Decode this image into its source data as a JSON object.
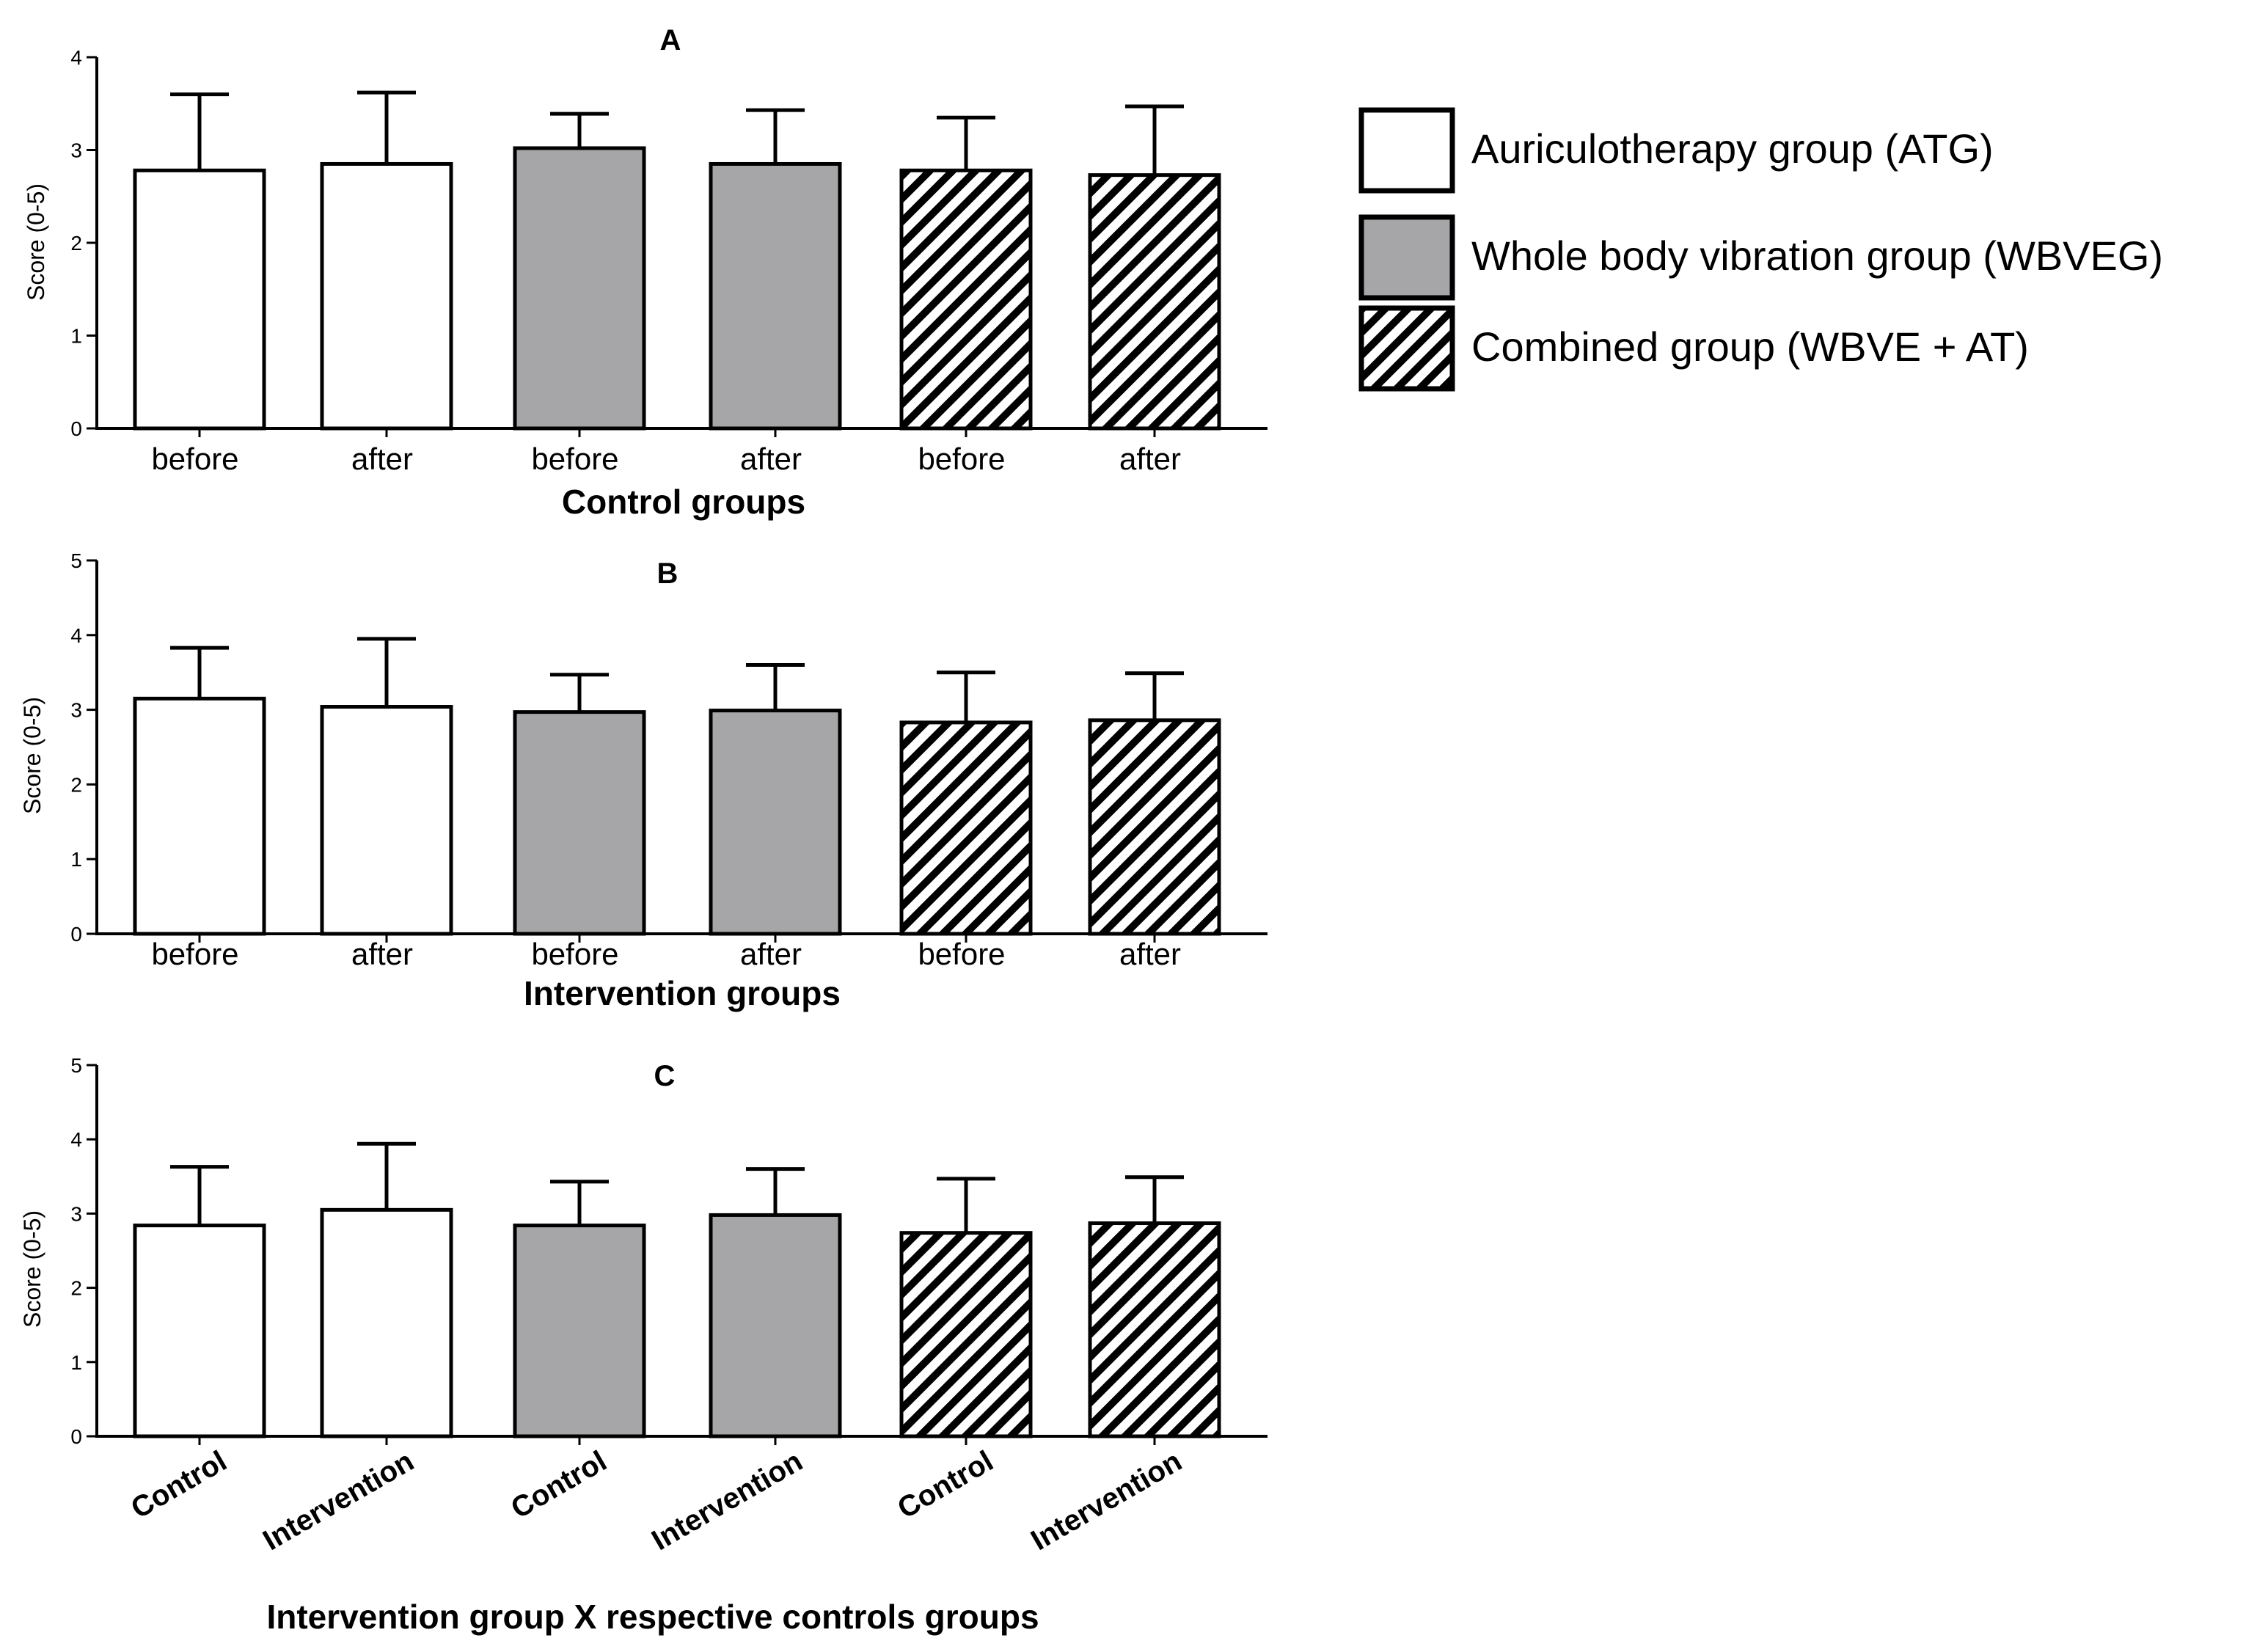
{
  "legend": {
    "items": [
      {
        "label": "Auriculotherapy group (ATG)",
        "fill": "white"
      },
      {
        "label": "Whole body vibration group (WBVEG)",
        "fill": "gray"
      },
      {
        "label": "Combined group (WBVE + AT)",
        "fill": "hatch"
      }
    ]
  },
  "colors": {
    "bar_gray": "#a6a6a8",
    "stroke": "#000000",
    "background": "#ffffff"
  },
  "chart_data": [
    {
      "type": "bar",
      "panel": "A",
      "title": "A",
      "xlabel": "Control groups",
      "ylabel": "Score (0-5)",
      "ylim": [
        0,
        4
      ],
      "yticks": [
        "0",
        "1",
        "2",
        "3",
        "4"
      ],
      "categories": [
        "before",
        "after",
        "before",
        "after",
        "before",
        "after"
      ],
      "category_groups": [
        "ATG",
        "ATG",
        "WBVEG",
        "WBVEG",
        "WBVE + AT",
        "WBVE + AT"
      ],
      "values": [
        2.78,
        2.85,
        3.02,
        2.85,
        2.78,
        2.73
      ],
      "error_upper": [
        3.6,
        3.62,
        3.39,
        3.43,
        3.35,
        3.47
      ],
      "rotated_labels": false
    },
    {
      "type": "bar",
      "panel": "B",
      "title": "B",
      "xlabel": "Intervention groups",
      "ylabel": "Score (0-5)",
      "ylim": [
        0,
        5
      ],
      "yticks": [
        "0",
        "1",
        "2",
        "3",
        "4",
        "5"
      ],
      "categories": [
        "before",
        "after",
        "before",
        "after",
        "before",
        "after"
      ],
      "category_groups": [
        "ATG",
        "ATG",
        "WBVEG",
        "WBVEG",
        "WBVE + AT",
        "WBVE + AT"
      ],
      "values": [
        3.15,
        3.04,
        2.97,
        2.99,
        2.83,
        2.86
      ],
      "error_upper": [
        3.83,
        3.95,
        3.47,
        3.6,
        3.5,
        3.49
      ],
      "rotated_labels": false
    },
    {
      "type": "bar",
      "panel": "C",
      "title": "C",
      "xlabel": "Intervention group X  respective controls groups",
      "ylabel": "Score (0-5)",
      "ylim": [
        0,
        5
      ],
      "yticks": [
        "0",
        "1",
        "2",
        "3",
        "4",
        "5"
      ],
      "categories": [
        "Control",
        "Intervention",
        "Control",
        "Intervention",
        "Control",
        "Intervention"
      ],
      "category_groups": [
        "ATG",
        "ATG",
        "WBVEG",
        "WBVEG",
        "WBVE + AT",
        "WBVE + AT"
      ],
      "values": [
        2.84,
        3.05,
        2.84,
        2.98,
        2.74,
        2.87
      ],
      "error_upper": [
        3.63,
        3.94,
        3.43,
        3.6,
        3.47,
        3.49
      ],
      "rotated_labels": true
    }
  ]
}
